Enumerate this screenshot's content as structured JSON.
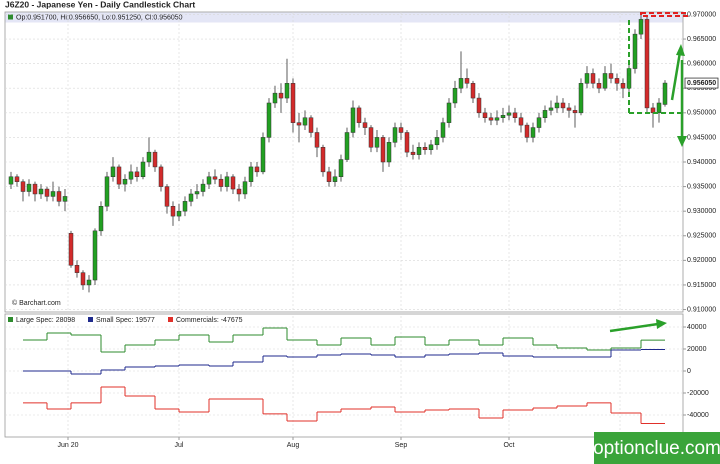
{
  "chart_data": [
    {
      "type": "candlestick",
      "title": "J6Z20 - Japanese Yen - Daily Candlestick Chart",
      "subtitle": "Op:0.951700, Hi:0.956650, Lo:0.951250, Cl:0.956050",
      "annotation": "© Barchart.com",
      "open": [
        0.9355,
        0.937,
        0.936,
        0.934,
        0.9355,
        0.9335,
        0.9345,
        0.933,
        0.934,
        0.932,
        0.9255,
        0.919,
        0.9175,
        0.915,
        0.916,
        0.926,
        0.931,
        0.937,
        0.939,
        0.9355,
        0.9365,
        0.938,
        0.937,
        0.94,
        0.942,
        0.939,
        0.935,
        0.931,
        0.929,
        0.93,
        0.932,
        0.9335,
        0.934,
        0.9355,
        0.937,
        0.9365,
        0.935,
        0.937,
        0.9345,
        0.9335,
        0.936,
        0.939,
        0.938,
        0.945,
        0.952,
        0.954,
        0.953,
        0.956,
        0.948,
        0.9475,
        0.949,
        0.946,
        0.943,
        0.938,
        0.936,
        0.937,
        0.9405,
        0.946,
        0.951,
        0.948,
        0.947,
        0.943,
        0.945,
        0.94,
        0.944,
        0.947,
        0.946,
        0.942,
        0.9415,
        0.943,
        0.9425,
        0.9435,
        0.945,
        0.948,
        0.952,
        0.955,
        0.957,
        0.956,
        0.953,
        0.95,
        0.949,
        0.9485,
        0.949,
        0.9495,
        0.95,
        0.949,
        0.9475,
        0.945,
        0.947,
        0.949,
        0.9505,
        0.951,
        0.952,
        0.951,
        0.9505,
        0.95,
        0.956,
        0.958,
        0.956,
        0.955,
        0.958,
        0.957,
        0.956,
        0.955,
        0.959,
        0.966,
        0.969,
        0.951,
        0.95,
        0.9517
      ],
      "high": [
        0.938,
        0.9375,
        0.9365,
        0.9365,
        0.936,
        0.9355,
        0.935,
        0.936,
        0.935,
        0.9345,
        0.926,
        0.92,
        0.918,
        0.917,
        0.9265,
        0.932,
        0.938,
        0.941,
        0.9395,
        0.9375,
        0.9395,
        0.939,
        0.941,
        0.945,
        0.9425,
        0.9395,
        0.9355,
        0.932,
        0.9315,
        0.933,
        0.9345,
        0.9355,
        0.9365,
        0.938,
        0.9385,
        0.9375,
        0.938,
        0.9375,
        0.9355,
        0.937,
        0.94,
        0.94,
        0.946,
        0.953,
        0.9555,
        0.956,
        0.961,
        0.957,
        0.95,
        0.9505,
        0.9495,
        0.947,
        0.9435,
        0.939,
        0.9385,
        0.9415,
        0.947,
        0.9525,
        0.9515,
        0.949,
        0.9475,
        0.9465,
        0.9455,
        0.945,
        0.948,
        0.948,
        0.9465,
        0.9435,
        0.944,
        0.944,
        0.9445,
        0.9465,
        0.949,
        0.953,
        0.9565,
        0.9625,
        0.959,
        0.9565,
        0.954,
        0.951,
        0.95,
        0.9505,
        0.951,
        0.9515,
        0.951,
        0.95,
        0.948,
        0.948,
        0.95,
        0.9515,
        0.9525,
        0.9535,
        0.953,
        0.952,
        0.9515,
        0.957,
        0.9595,
        0.959,
        0.957,
        0.9595,
        0.96,
        0.958,
        0.957,
        0.96,
        0.967,
        0.97,
        0.9695,
        0.952,
        0.953,
        0.95665
      ],
      "low": [
        0.9345,
        0.935,
        0.932,
        0.933,
        0.932,
        0.9325,
        0.932,
        0.932,
        0.931,
        0.93,
        0.9185,
        0.9165,
        0.914,
        0.9135,
        0.915,
        0.925,
        0.93,
        0.936,
        0.9345,
        0.934,
        0.9355,
        0.936,
        0.9365,
        0.939,
        0.938,
        0.934,
        0.9295,
        0.927,
        0.928,
        0.929,
        0.931,
        0.9325,
        0.933,
        0.9345,
        0.9355,
        0.934,
        0.934,
        0.9335,
        0.932,
        0.9325,
        0.935,
        0.937,
        0.9375,
        0.944,
        0.951,
        0.95,
        0.952,
        0.946,
        0.944,
        0.9465,
        0.945,
        0.941,
        0.937,
        0.935,
        0.935,
        0.936,
        0.94,
        0.945,
        0.947,
        0.9455,
        0.942,
        0.942,
        0.938,
        0.939,
        0.943,
        0.9445,
        0.941,
        0.9405,
        0.9405,
        0.9415,
        0.9415,
        0.9425,
        0.944,
        0.947,
        0.951,
        0.954,
        0.955,
        0.952,
        0.949,
        0.948,
        0.9475,
        0.9475,
        0.948,
        0.9485,
        0.948,
        0.946,
        0.944,
        0.944,
        0.946,
        0.948,
        0.9495,
        0.95,
        0.95,
        0.949,
        0.947,
        0.9495,
        0.955,
        0.955,
        0.954,
        0.9545,
        0.956,
        0.9545,
        0.953,
        0.954,
        0.958,
        0.965,
        0.95,
        0.947,
        0.948,
        0.95125
      ],
      "close": [
        0.937,
        0.936,
        0.934,
        0.9355,
        0.9335,
        0.9345,
        0.933,
        0.934,
        0.932,
        0.933,
        0.919,
        0.9175,
        0.915,
        0.916,
        0.926,
        0.931,
        0.937,
        0.939,
        0.9355,
        0.9365,
        0.938,
        0.937,
        0.94,
        0.942,
        0.939,
        0.935,
        0.931,
        0.929,
        0.93,
        0.932,
        0.9335,
        0.934,
        0.9355,
        0.937,
        0.9365,
        0.935,
        0.937,
        0.9345,
        0.9335,
        0.936,
        0.939,
        0.938,
        0.945,
        0.952,
        0.954,
        0.953,
        0.956,
        0.948,
        0.9475,
        0.949,
        0.946,
        0.943,
        0.938,
        0.936,
        0.937,
        0.9405,
        0.946,
        0.951,
        0.948,
        0.947,
        0.943,
        0.945,
        0.94,
        0.944,
        0.947,
        0.946,
        0.942,
        0.9415,
        0.943,
        0.9425,
        0.9435,
        0.945,
        0.948,
        0.952,
        0.955,
        0.957,
        0.956,
        0.953,
        0.95,
        0.949,
        0.9485,
        0.949,
        0.9495,
        0.95,
        0.949,
        0.9475,
        0.945,
        0.947,
        0.949,
        0.9505,
        0.951,
        0.952,
        0.951,
        0.9505,
        0.95,
        0.956,
        0.958,
        0.956,
        0.955,
        0.958,
        0.957,
        0.956,
        0.955,
        0.959,
        0.966,
        0.969,
        0.951,
        0.95,
        0.952,
        0.95605
      ],
      "up_color": "#22a022",
      "down_color": "#d22b2b",
      "last_price": {
        "value": 0.95605,
        "label": "0.956050"
      },
      "xlim": [
        -1,
        112
      ],
      "ylim": [
        0.9095,
        0.9705
      ],
      "yticks": [
        {
          "value": 0.97,
          "label": "0.970000"
        },
        {
          "value": 0.965,
          "label": "0.965000"
        },
        {
          "value": 0.96,
          "label": "0.960000"
        },
        {
          "value": 0.955,
          "label": "0.955000"
        },
        {
          "value": 0.95,
          "label": "0.950000"
        },
        {
          "value": 0.945,
          "label": "0.945000"
        },
        {
          "value": 0.94,
          "label": "0.940000"
        },
        {
          "value": 0.935,
          "label": "0.935000"
        },
        {
          "value": 0.93,
          "label": "0.930000"
        },
        {
          "value": 0.925,
          "label": "0.925000"
        },
        {
          "value": 0.92,
          "label": "0.920000"
        },
        {
          "value": 0.915,
          "label": "0.915000"
        },
        {
          "value": 0.91,
          "label": "0.910000"
        }
      ],
      "grid": true
    },
    {
      "type": "step",
      "x": [
        2,
        6,
        10,
        15,
        19,
        24,
        28,
        33,
        37,
        42,
        46,
        51,
        55,
        60,
        64,
        69,
        73,
        78,
        82,
        87,
        91,
        96,
        100,
        105
      ],
      "series": [
        {
          "name": "Large Spec: 28098",
          "color": "#2e8b2e",
          "values": [
            28200,
            34500,
            32700,
            17300,
            23600,
            28200,
            32700,
            26400,
            32700,
            39100,
            28200,
            23600,
            30000,
            23600,
            30900,
            23600,
            28200,
            23600,
            30000,
            23600,
            20900,
            19100,
            20900,
            28098
          ]
        },
        {
          "name": "Small Spec: 19577",
          "color": "#1f2a8c",
          "values": [
            0,
            0,
            -2700,
            900,
            3600,
            4500,
            5500,
            4500,
            8200,
            13600,
            12700,
            14500,
            15500,
            14500,
            12700,
            14500,
            15500,
            16400,
            13600,
            12700,
            12700,
            12700,
            19100,
            19577
          ]
        },
        {
          "name": "Commercials: -47675",
          "color": "#e0302a",
          "values": [
            -29000,
            -34500,
            -29000,
            -14500,
            -22700,
            -34500,
            -37300,
            -25500,
            -25500,
            -39000,
            -45500,
            -37300,
            -34500,
            -32700,
            -37300,
            -35500,
            -34500,
            -42700,
            -35500,
            -33600,
            -31800,
            -29000,
            -38200,
            -47675
          ]
        }
      ],
      "xlim": [
        -1,
        112
      ],
      "ylim": [
        -60000,
        50000
      ],
      "yticks": [
        40000,
        20000,
        0,
        -20000,
        -40000
      ],
      "xticks": [
        {
          "value": 9.5,
          "label": "Jun 20"
        },
        {
          "value": 28,
          "label": "Jul"
        },
        {
          "value": 47,
          "label": "Aug"
        },
        {
          "value": 65,
          "label": "Sep"
        },
        {
          "value": 83,
          "label": "Oct"
        },
        {
          "value": 101.5,
          "label": ""
        }
      ],
      "grid": true
    }
  ],
  "watermark": "optionclue.com"
}
